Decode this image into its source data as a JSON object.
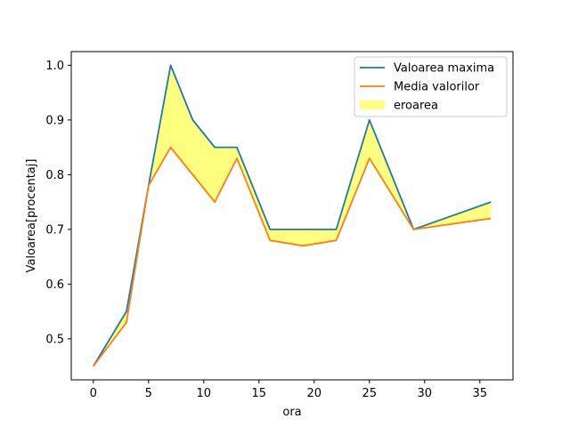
{
  "chart_data": {
    "type": "line",
    "xlabel": "ora",
    "ylabel": "Valoarea[procentaj]",
    "xlim": [
      -2,
      38
    ],
    "ylim": [
      0.425,
      1.025
    ],
    "xticks": [
      0,
      5,
      10,
      15,
      20,
      25,
      30,
      35
    ],
    "yticks": [
      0.5,
      0.6,
      0.7,
      0.8,
      0.9,
      1.0
    ],
    "x": [
      0,
      3,
      5,
      7,
      9,
      11,
      13,
      16,
      19,
      22,
      25,
      29,
      36
    ],
    "series": [
      {
        "name": "Valoarea maxima",
        "color": "#1f77b4",
        "values": [
          0.45,
          0.55,
          0.78,
          1.0,
          0.9,
          0.85,
          0.85,
          0.7,
          0.7,
          0.7,
          0.9,
          0.7,
          0.75
        ]
      },
      {
        "name": "Media valorilor",
        "color": "#ff7f0e",
        "values": [
          0.45,
          0.53,
          0.78,
          0.85,
          0.8,
          0.75,
          0.83,
          0.68,
          0.67,
          0.68,
          0.83,
          0.7,
          0.72
        ]
      }
    ],
    "fill": {
      "name": "eroarea",
      "color": "#ffff00",
      "opacity": 0.5,
      "between": [
        "Valoarea maxima",
        "Media valorilor"
      ]
    },
    "legend": "top-right",
    "grid": false
  }
}
